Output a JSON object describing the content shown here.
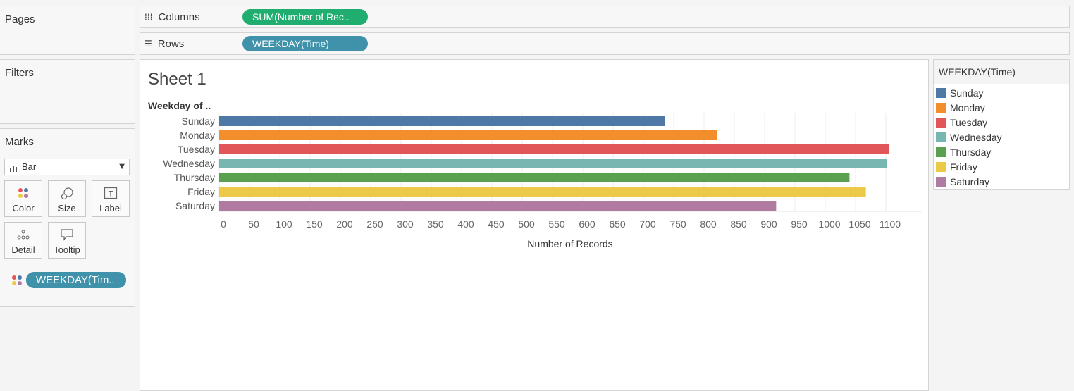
{
  "panels": {
    "pages": "Pages",
    "filters": "Filters",
    "marks": "Marks"
  },
  "shelves": {
    "columns_label": "Columns",
    "columns_pill": "SUM(Number of Rec..",
    "rows_label": "Rows",
    "rows_pill": "WEEKDAY(Time)"
  },
  "marks": {
    "type": "Bar",
    "color": "Color",
    "size": "Size",
    "label": "Label",
    "detail": "Detail",
    "tooltip": "Tooltip",
    "color_pill": "WEEKDAY(Tim.."
  },
  "sheet": {
    "title": "Sheet 1"
  },
  "legend": {
    "title": "WEEKDAY(Time)",
    "items": [
      {
        "label": "Sunday",
        "color": "#4e79a7"
      },
      {
        "label": "Monday",
        "color": "#f28e2b"
      },
      {
        "label": "Tuesday",
        "color": "#e15759"
      },
      {
        "label": "Wednesday",
        "color": "#76b7b2"
      },
      {
        "label": "Thursday",
        "color": "#59a14f"
      },
      {
        "label": "Friday",
        "color": "#edc948"
      },
      {
        "label": "Saturday",
        "color": "#b07aa1"
      }
    ]
  },
  "chart_data": {
    "type": "bar",
    "orientation": "horizontal",
    "categories": [
      "Sunday",
      "Monday",
      "Tuesday",
      "Wednesday",
      "Thursday",
      "Friday",
      "Saturday"
    ],
    "values": [
      735,
      822,
      1105,
      1102,
      1040,
      1067,
      919
    ],
    "colors": [
      "#4e79a7",
      "#f28e2b",
      "#e15759",
      "#76b7b2",
      "#59a14f",
      "#edc948",
      "#b07aa1"
    ],
    "row_header": "Weekday of ..",
    "xlabel": "Number of Records",
    "ticks": [
      0,
      50,
      100,
      150,
      200,
      250,
      300,
      350,
      400,
      450,
      500,
      550,
      600,
      650,
      700,
      750,
      800,
      850,
      900,
      950,
      1000,
      1050,
      1100
    ],
    "xlim": [
      0,
      1150
    ],
    "grid": true
  }
}
